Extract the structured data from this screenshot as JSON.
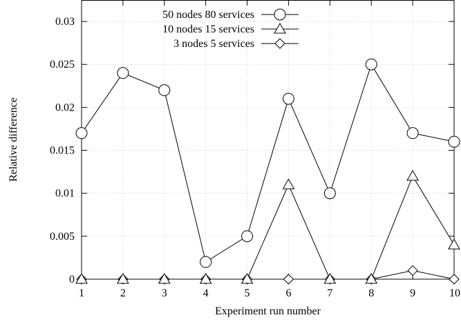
{
  "chart_data": {
    "type": "line",
    "xlabel": "Experiment run number",
    "ylabel": "Relative difference",
    "x": [
      1,
      2,
      3,
      4,
      5,
      6,
      7,
      8,
      9,
      10
    ],
    "xlim": [
      1,
      10
    ],
    "ylim": [
      0,
      0.0325
    ],
    "xticks": [
      "1",
      "2",
      "3",
      "4",
      "5",
      "6",
      "7",
      "8",
      "9",
      "10"
    ],
    "yticks": [
      "0",
      "0.005",
      "0.01",
      "0.015",
      "0.02",
      "0.025",
      "0.03"
    ],
    "ytick_values": [
      0,
      0.005,
      0.01,
      0.015,
      0.02,
      0.025,
      0.03
    ],
    "grid": true,
    "legend_position": "top-center",
    "series": [
      {
        "name": "50 nodes 80 services",
        "marker": "circle",
        "values": [
          0.017,
          0.024,
          0.022,
          0.002,
          0.005,
          0.021,
          0.01,
          0.025,
          0.017,
          0.016
        ]
      },
      {
        "name": "10 nodes 15 services",
        "marker": "triangle",
        "values": [
          0,
          0,
          0,
          0,
          0,
          0.011,
          0,
          0,
          0.012,
          0.004
        ]
      },
      {
        "name": "3 nodes 5 services",
        "marker": "diamond",
        "values": [
          0,
          0,
          0,
          0,
          0,
          0,
          0,
          0,
          0.001,
          0
        ]
      }
    ]
  }
}
